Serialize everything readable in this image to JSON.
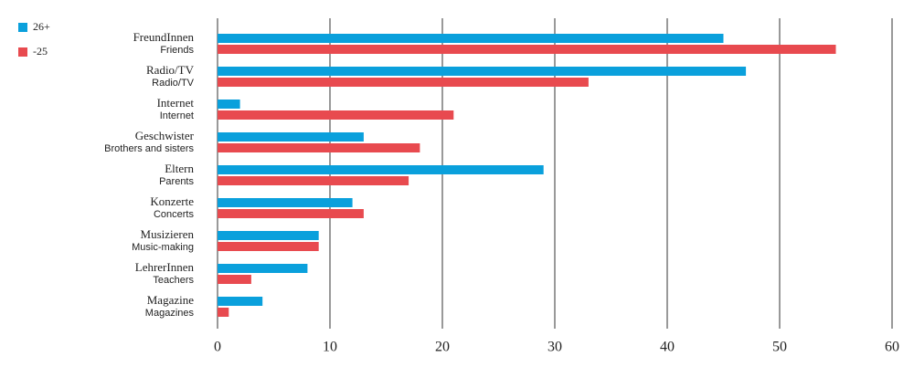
{
  "chart_data": {
    "type": "barh",
    "categories": [
      "FreundInnen",
      "Radio/TV",
      "Internet",
      "Geschwister",
      "Eltern",
      "Konzerte",
      "Musizieren",
      "LehrerInnen",
      "Magazine"
    ],
    "category_translations": [
      "Friends",
      "Radio/TV",
      "Internet",
      "Brothers and sisters",
      "Parents",
      "Concerts",
      "Music-making",
      "Teachers",
      "Magazines"
    ],
    "series": [
      {
        "name": "26+",
        "color": "#0aa0dc",
        "values": [
          45,
          47,
          2,
          13,
          29,
          12,
          9,
          8,
          4
        ]
      },
      {
        "name": "-25",
        "color": "#e84a4f",
        "values": [
          55,
          33,
          21,
          18,
          17,
          13,
          9,
          3,
          1
        ]
      }
    ],
    "xlim": [
      0,
      60
    ],
    "xticks": [
      0,
      10,
      20,
      30,
      40,
      50,
      60
    ],
    "grid": true,
    "legend": "top-left"
  }
}
